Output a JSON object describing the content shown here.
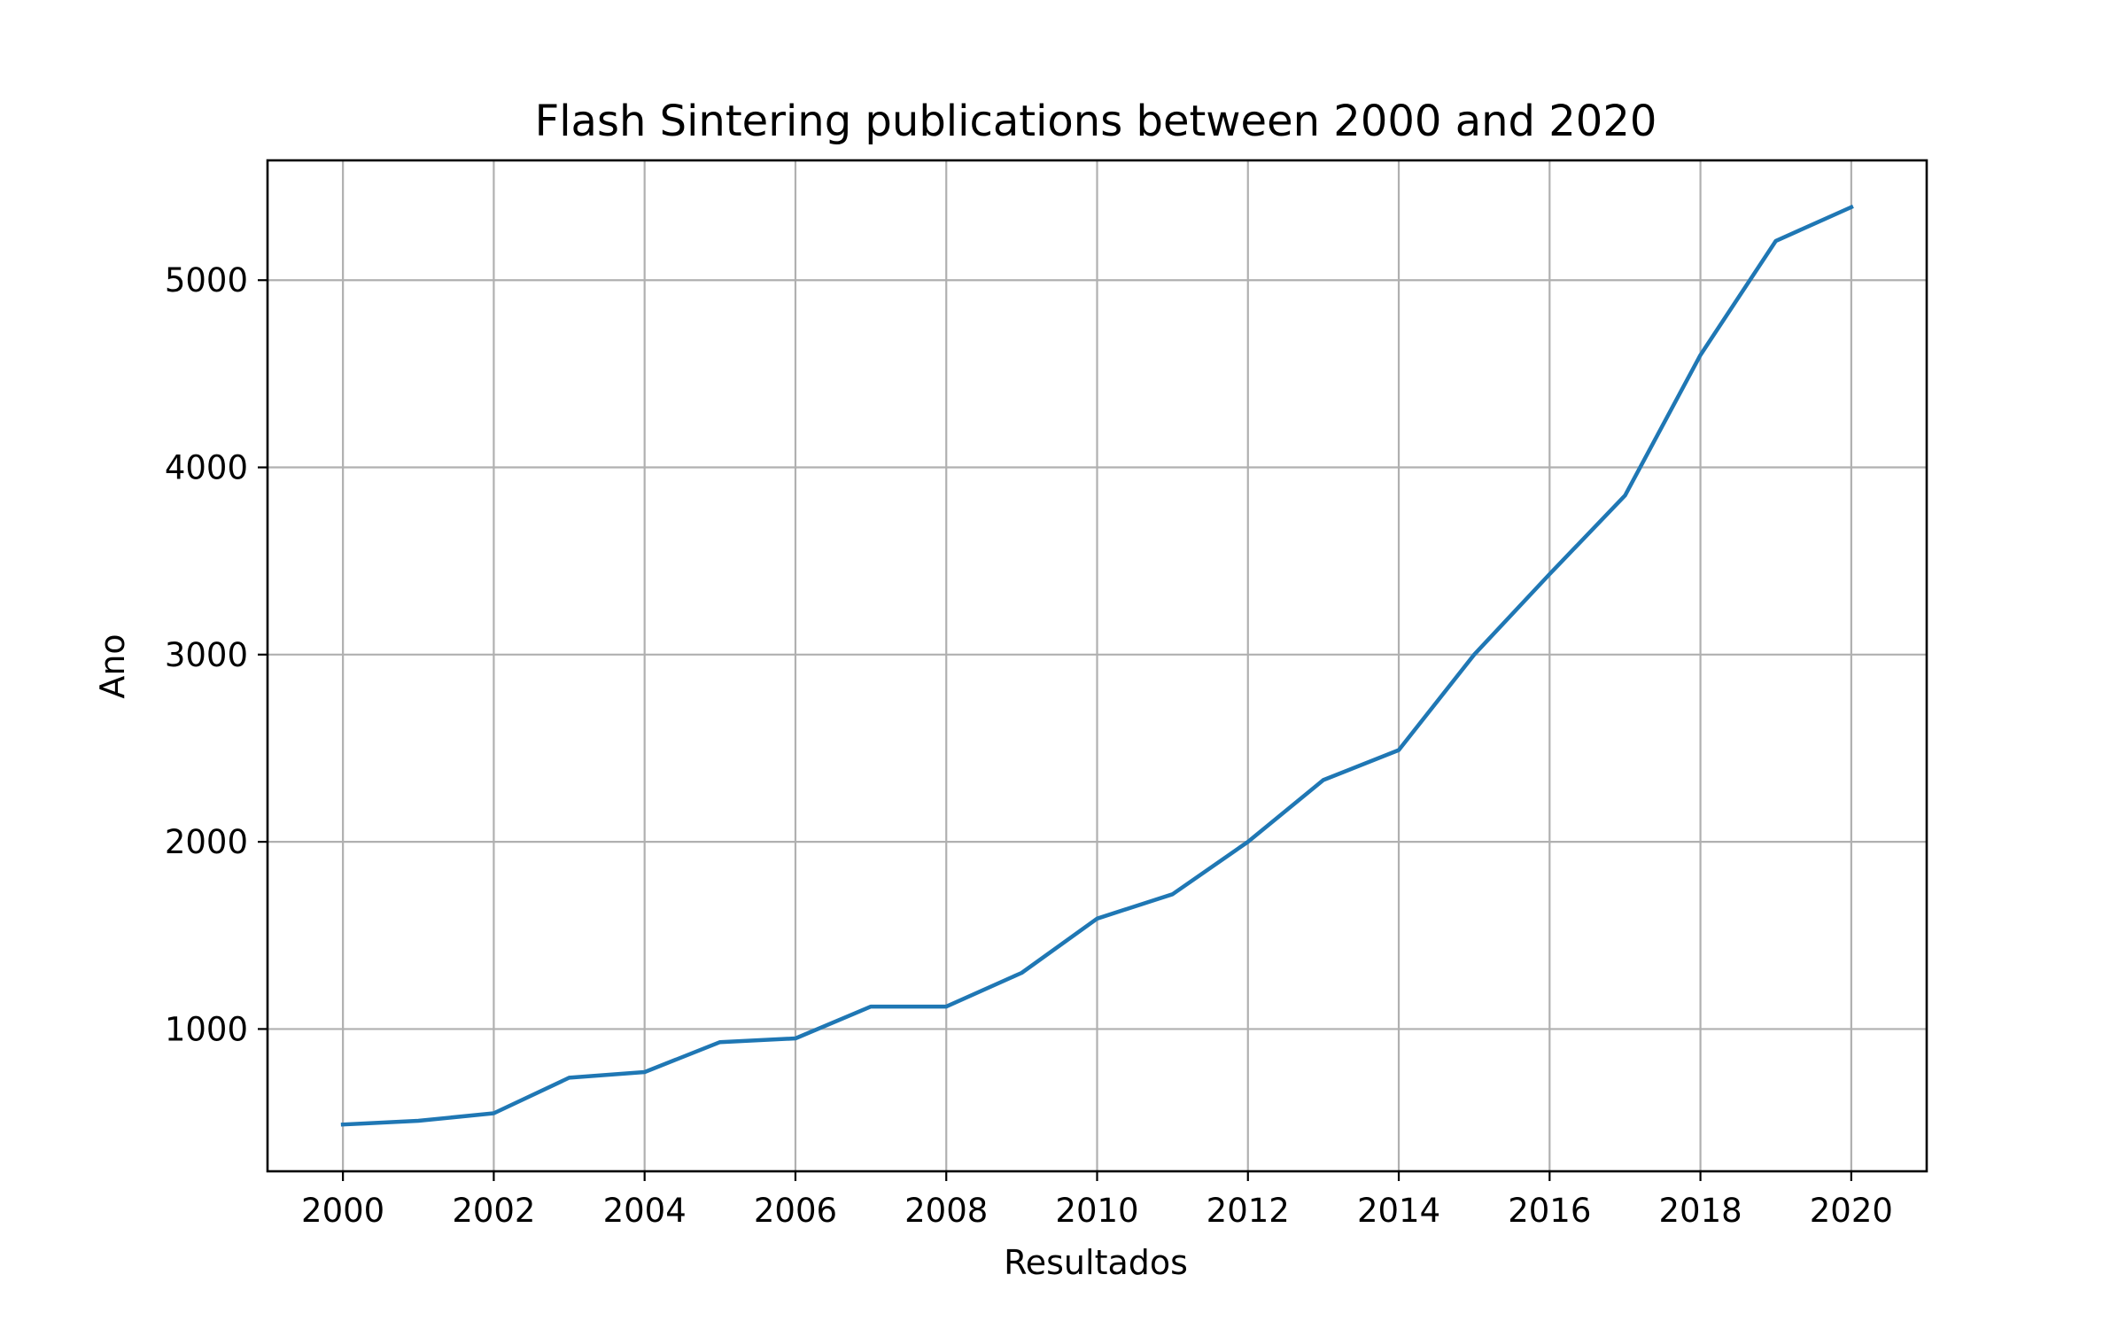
{
  "chart_data": {
    "type": "line",
    "title": "Flash Sintering publications between 2000 and 2020",
    "xlabel": "Resultados",
    "ylabel": "Ano",
    "xlim": [
      1999,
      2021
    ],
    "ylim": [
      240,
      5640
    ],
    "grid": true,
    "line_color": "#1f77b4",
    "x_ticks": [
      2000,
      2002,
      2004,
      2006,
      2008,
      2010,
      2012,
      2014,
      2016,
      2018,
      2020
    ],
    "y_ticks": [
      1000,
      2000,
      3000,
      4000,
      5000
    ],
    "series": [
      {
        "x": [
          2000,
          2001,
          2002,
          2003,
          2004,
          2005,
          2006,
          2007,
          2008,
          2009,
          2010,
          2011,
          2012,
          2013,
          2014,
          2015,
          2016,
          2017,
          2018,
          2019,
          2020
        ],
        "values": [
          490,
          510,
          550,
          740,
          770,
          930,
          950,
          1120,
          1120,
          1300,
          1590,
          1720,
          2000,
          2330,
          2490,
          3000,
          3430,
          3850,
          4600,
          5210,
          5390
        ]
      }
    ]
  }
}
